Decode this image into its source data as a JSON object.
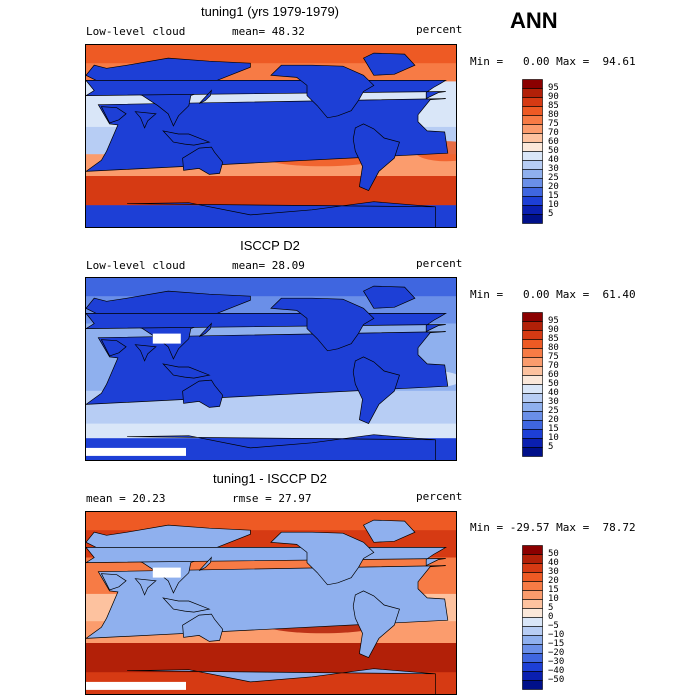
{
  "season": "ANN",
  "panels": [
    {
      "title": "tuning1 (yrs 1979-1979)",
      "left_label": "Low-level cloud",
      "center_label": "mean=  48.32",
      "right_label": "percent",
      "minmax": "Min =   0.00 Max =  94.61",
      "colorbar_labels": [
        "95",
        "90",
        "85",
        "80",
        "75",
        "70",
        "60",
        "50",
        "40",
        "30",
        "25",
        "20",
        "15",
        "10",
        "5"
      ],
      "colorbar_colors": [
        "#8b0000",
        "#b22008",
        "#d63a13",
        "#ee5a24",
        "#f77b45",
        "#fb9c6d",
        "#fdc29f",
        "#fbe8da",
        "#d9e6f8",
        "#b7cdf4",
        "#8fb0ee",
        "#6a8fe8",
        "#3f66e0",
        "#1d3fd6",
        "#0a1fb0",
        "#00108a"
      ],
      "field": "model"
    },
    {
      "title": "ISCCP D2",
      "left_label": "Low-level cloud",
      "center_label": "mean=  28.09",
      "right_label": "percent",
      "minmax": "Min =   0.00 Max =  61.40",
      "colorbar_labels": [
        "95",
        "90",
        "85",
        "80",
        "75",
        "70",
        "60",
        "50",
        "40",
        "30",
        "25",
        "20",
        "15",
        "10",
        "5"
      ],
      "colorbar_colors": [
        "#8b0000",
        "#b22008",
        "#d63a13",
        "#ee5a24",
        "#f77b45",
        "#fb9c6d",
        "#fdc29f",
        "#fbe8da",
        "#d9e6f8",
        "#b7cdf4",
        "#8fb0ee",
        "#6a8fe8",
        "#3f66e0",
        "#1d3fd6",
        "#0a1fb0",
        "#00108a"
      ],
      "field": "obs"
    },
    {
      "title": "tuning1 - ISCCP D2",
      "left_label": "mean =  20.23",
      "center_label": "rmse =  27.97",
      "right_label": "percent",
      "minmax": "Min = -29.57 Max =  78.72",
      "colorbar_labels": [
        "50",
        "40",
        "30",
        "20",
        "15",
        "10",
        "5",
        "0",
        "−5",
        "−10",
        "−15",
        "−20",
        "−30",
        "−40",
        "−50"
      ],
      "colorbar_colors": [
        "#8b0000",
        "#b22008",
        "#d63a13",
        "#ee5a24",
        "#f77b45",
        "#fb9c6d",
        "#fdc29f",
        "#fbe8da",
        "#d9e6f8",
        "#b7cdf4",
        "#8fb0ee",
        "#6a8fe8",
        "#3f66e0",
        "#1d3fd6",
        "#0a1fb0",
        "#00108a"
      ],
      "field": "diff"
    }
  ]
}
